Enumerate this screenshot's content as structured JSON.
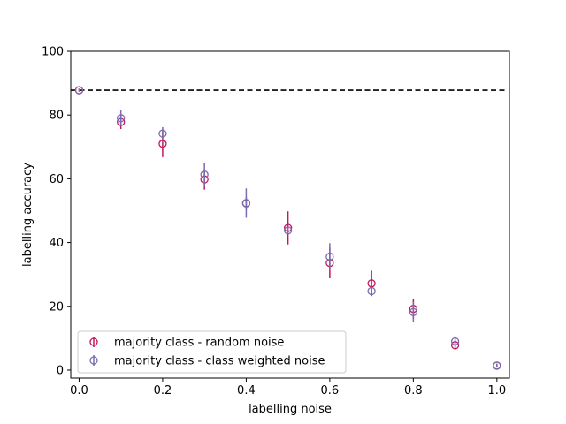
{
  "chart_data": {
    "type": "scatter",
    "title": "",
    "xlabel": "labelling noise",
    "ylabel": "labelling accuracy",
    "xlim": [
      -0.02,
      1.03
    ],
    "ylim": [
      -2.5,
      100
    ],
    "xticks": [
      0.0,
      0.2,
      0.4,
      0.6,
      0.8,
      1.0
    ],
    "xtick_labels": [
      "0.0",
      "0.2",
      "0.4",
      "0.6",
      "0.8",
      "1.0"
    ],
    "yticks": [
      0,
      20,
      40,
      60,
      80,
      100
    ],
    "ytick_labels": [
      "0",
      "20",
      "40",
      "60",
      "80",
      "100"
    ],
    "grid": false,
    "legend_position": "lower-left",
    "reference_line": {
      "y": 87.8,
      "style": "dashed",
      "color": "#000000"
    },
    "series": [
      {
        "name": "majority class - random noise",
        "color": "#c2185b",
        "marker": "open-circle",
        "x": [
          0.0,
          0.1,
          0.2,
          0.3,
          0.4,
          0.5,
          0.6,
          0.7,
          0.8,
          0.9,
          1.0
        ],
        "y": [
          87.8,
          77.8,
          71.0,
          59.8,
          52.3,
          44.6,
          33.6,
          27.2,
          19.2,
          7.8,
          1.4
        ],
        "err": [
          0.5,
          2.2,
          4.2,
          3.2,
          2.0,
          5.2,
          4.8,
          4.0,
          3.0,
          1.4,
          0.6
        ]
      },
      {
        "name": "majority class - class weighted noise",
        "color": "#7b6bb0",
        "marker": "open-circle",
        "x": [
          0.0,
          0.1,
          0.2,
          0.3,
          0.4,
          0.5,
          0.6,
          0.7,
          0.8,
          0.9,
          1.0
        ],
        "y": [
          87.8,
          79.0,
          74.2,
          61.3,
          52.4,
          43.8,
          35.6,
          24.8,
          18.2,
          9.0,
          1.4
        ],
        "err": [
          0.4,
          2.5,
          2.0,
          3.8,
          4.6,
          1.2,
          4.2,
          1.2,
          3.2,
          1.6,
          0.6
        ]
      }
    ]
  }
}
